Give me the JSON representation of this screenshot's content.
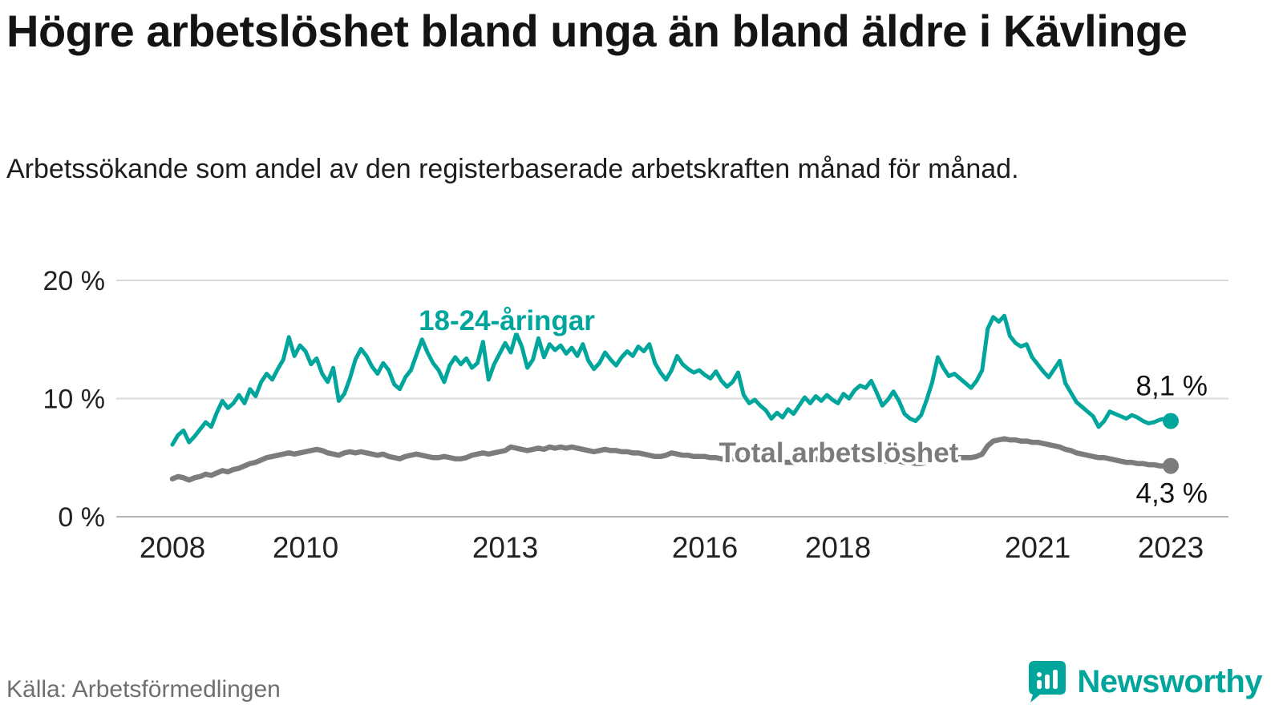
{
  "title": "Högre arbetslöshet bland unga än bland äldre i Kävlinge",
  "subtitle": "Arbetssökande som andel av den registerbaserade arbetskraften månad för månad.",
  "source": "Källa: Arbetsförmedlingen",
  "branding": {
    "name": "Newsworthy",
    "color": "#00a59b"
  },
  "chart_data": {
    "type": "line",
    "title": "Högre arbetslöshet bland unga än bland äldre i Kävlinge",
    "xlabel": "",
    "ylabel": "Arbetssökande som andel av den registerbaserade arbetskraften",
    "x_unit": "month",
    "start_year": 2008,
    "end_point": "2023-01",
    "ylim": [
      0,
      21
    ],
    "grid": "horizontal",
    "legend_position": "inline-labels",
    "y_ticks": [
      0,
      10,
      20
    ],
    "y_tick_labels": [
      "0 %",
      "10 %",
      "20 %"
    ],
    "x_tick_years": [
      2008,
      2010,
      2013,
      2016,
      2018,
      2021,
      2023
    ],
    "x_tick_labels": [
      "2008",
      "2010",
      "2013",
      "2016",
      "2018",
      "2021",
      "2023"
    ],
    "series": [
      {
        "name": "18-24-åringar",
        "color": "#00a59b",
        "end_label": "8,1 %",
        "end_value": 8.1,
        "values": [
          6.1,
          6.9,
          7.3,
          6.3,
          6.8,
          7.4,
          8.0,
          7.6,
          8.8,
          9.8,
          9.2,
          9.6,
          10.3,
          9.6,
          10.8,
          10.2,
          11.4,
          12.1,
          11.6,
          12.5,
          13.3,
          15.2,
          13.6,
          14.5,
          14.0,
          12.9,
          13.4,
          12.1,
          11.4,
          12.6,
          9.8,
          10.4,
          11.7,
          13.3,
          14.2,
          13.6,
          12.7,
          12.1,
          13.0,
          12.4,
          11.2,
          10.8,
          11.8,
          12.4,
          13.7,
          15.0,
          13.9,
          13.0,
          12.4,
          11.4,
          12.8,
          13.5,
          12.9,
          13.4,
          12.6,
          13.0,
          14.8,
          11.6,
          12.9,
          13.8,
          14.7,
          13.9,
          15.5,
          14.4,
          12.6,
          13.3,
          15.1,
          13.5,
          14.6,
          14.1,
          14.5,
          13.8,
          14.3,
          13.6,
          14.6,
          13.2,
          12.5,
          13.0,
          13.9,
          13.3,
          12.8,
          13.5,
          14.0,
          13.6,
          14.4,
          14.0,
          14.6,
          13.0,
          12.2,
          11.6,
          12.4,
          13.6,
          12.9,
          12.5,
          12.2,
          12.4,
          12.0,
          11.7,
          12.3,
          11.5,
          11.0,
          11.4,
          12.2,
          10.3,
          9.6,
          9.9,
          9.4,
          9.0,
          8.3,
          8.8,
          8.4,
          9.1,
          8.7,
          9.4,
          10.1,
          9.6,
          10.2,
          9.8,
          10.3,
          9.9,
          9.6,
          10.4,
          10.0,
          10.7,
          11.1,
          10.9,
          11.5,
          10.5,
          9.4,
          9.9,
          10.6,
          9.8,
          8.7,
          8.3,
          8.1,
          8.6,
          9.9,
          11.4,
          13.5,
          12.6,
          11.9,
          12.1,
          11.7,
          11.3,
          10.9,
          11.5,
          12.4,
          15.9,
          16.9,
          16.5,
          17.0,
          15.3,
          14.7,
          14.4,
          14.6,
          13.5,
          12.9,
          12.3,
          11.8,
          12.5,
          13.2,
          11.3,
          10.5,
          9.7,
          9.3,
          8.9,
          8.5,
          7.6,
          8.1,
          8.9,
          8.7,
          8.5,
          8.3,
          8.6,
          8.4,
          8.1,
          7.9,
          8.0,
          8.2,
          8.3,
          8.1
        ]
      },
      {
        "name": "Total arbetslöshet",
        "color": "#7c7c7c",
        "end_label": "4,3 %",
        "end_value": 4.3,
        "values": [
          3.2,
          3.4,
          3.3,
          3.1,
          3.3,
          3.4,
          3.6,
          3.5,
          3.7,
          3.9,
          3.8,
          4.0,
          4.1,
          4.3,
          4.5,
          4.6,
          4.8,
          5.0,
          5.1,
          5.2,
          5.3,
          5.4,
          5.3,
          5.4,
          5.5,
          5.6,
          5.7,
          5.6,
          5.4,
          5.3,
          5.2,
          5.4,
          5.5,
          5.4,
          5.5,
          5.4,
          5.3,
          5.2,
          5.3,
          5.1,
          5.0,
          4.9,
          5.1,
          5.2,
          5.3,
          5.2,
          5.1,
          5.0,
          5.0,
          5.1,
          5.0,
          4.9,
          4.9,
          5.0,
          5.2,
          5.3,
          5.4,
          5.3,
          5.4,
          5.5,
          5.6,
          5.9,
          5.8,
          5.7,
          5.6,
          5.7,
          5.8,
          5.7,
          5.9,
          5.8,
          5.9,
          5.8,
          5.9,
          5.8,
          5.7,
          5.6,
          5.5,
          5.6,
          5.7,
          5.6,
          5.6,
          5.5,
          5.5,
          5.4,
          5.4,
          5.3,
          5.2,
          5.1,
          5.1,
          5.2,
          5.4,
          5.3,
          5.2,
          5.2,
          5.1,
          5.1,
          5.1,
          5.0,
          5.0,
          4.9,
          4.8,
          4.9,
          5.0,
          4.9,
          4.9,
          4.8,
          4.8,
          4.8,
          4.7,
          4.7,
          4.6,
          4.6,
          4.6,
          4.7,
          4.9,
          4.8,
          4.9,
          4.8,
          4.9,
          4.9,
          4.8,
          4.9,
          4.8,
          4.8,
          4.9,
          4.8,
          4.9,
          4.8,
          4.7,
          4.7,
          4.8,
          4.7,
          4.6,
          4.6,
          4.5,
          4.5,
          4.6,
          4.8,
          5.0,
          4.9,
          4.9,
          5.0,
          5.0,
          5.0,
          5.0,
          5.1,
          5.3,
          6.0,
          6.4,
          6.5,
          6.6,
          6.5,
          6.5,
          6.4,
          6.4,
          6.3,
          6.3,
          6.2,
          6.1,
          6.0,
          5.9,
          5.7,
          5.6,
          5.4,
          5.3,
          5.2,
          5.1,
          5.0,
          5.0,
          4.9,
          4.8,
          4.7,
          4.6,
          4.6,
          4.5,
          4.5,
          4.4,
          4.4,
          4.3,
          4.3,
          4.3
        ]
      }
    ]
  }
}
